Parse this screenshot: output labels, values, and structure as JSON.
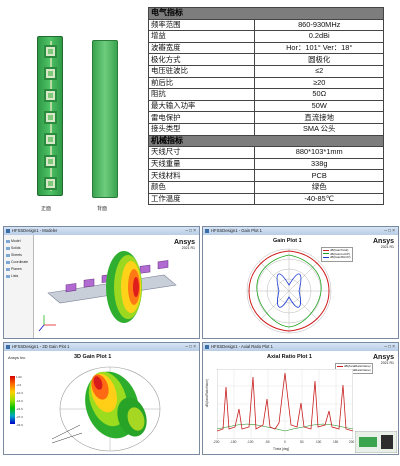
{
  "photos": {
    "front_caption": "正面",
    "back_caption": "背面"
  },
  "spec_table": {
    "electrical_header": "电气指标",
    "electrical": [
      {
        "label": "频率范围",
        "value": "860-930MHz"
      },
      {
        "label": "增益",
        "value": "0.2dBi"
      },
      {
        "label": "波瓣宽度",
        "value": "Hor：101°   Ver：18°"
      },
      {
        "label": "极化方式",
        "value": "圆极化"
      },
      {
        "label": "电压驻波比",
        "value": "≤2"
      },
      {
        "label": "前后比",
        "value": "≥20"
      },
      {
        "label": "阻抗",
        "value": "50Ω"
      },
      {
        "label": "最大输入功率",
        "value": "50W"
      },
      {
        "label": "雷电保护",
        "value": "直流接地"
      },
      {
        "label": "接头类型",
        "value": "SMA 公头"
      }
    ],
    "mechanical_header": "机械指标",
    "mechanical": [
      {
        "label": "天线尺寸",
        "value": "880*103*1mm"
      },
      {
        "label": "天线重量",
        "value": "338g"
      },
      {
        "label": "天线材料",
        "value": "PCB"
      },
      {
        "label": "颜色",
        "value": "绿色"
      },
      {
        "label": "工作温度",
        "value": "-40-85℃"
      }
    ]
  },
  "screens": {
    "modeler": {
      "title": "HFSSDesign1 - Modeler",
      "brand": "Ansys",
      "brand_sub": "2021 R1",
      "tree": [
        "Model",
        "Solids",
        "Sheets",
        "Coordinate",
        "Planes",
        "Lists"
      ]
    },
    "gain": {
      "title": "HFSSDesign1 - Gain Plot 1",
      "plot_title": "Gain Plot 1",
      "brand": "Ansys",
      "brand_sub": "2021 R1",
      "legend": [
        "dB(GainTotal)",
        "dB(GainLHCP)",
        "dB(GainRHCP)"
      ],
      "colors": {
        "total": "#d01c1c",
        "lhcp": "#1ca21c",
        "rhcp": "#1c3cd0"
      }
    },
    "gain3d": {
      "title": "HFSSDesign1 - 3D Gain Plot 1",
      "plot_title": "3D Gain Plot 1",
      "brand": "Ansys Inc",
      "scale_labels": [
        "1.02",
        "-4.6",
        "-10.3",
        "-16.0",
        "-21.6",
        "-27.3",
        "-33.0"
      ]
    },
    "axial": {
      "title": "HFSSDesign1 - Axial Ratio Plot 1",
      "plot_title": "Axial Ratio Plot 1",
      "brand": "Ansys",
      "brand_sub": "2021 R1",
      "xlabel": "Theta [deg]",
      "ylabel": "dB(AxialRatioValue)",
      "xticks": [
        "-200",
        "-150",
        "-100",
        "-50",
        "0",
        "50",
        "100",
        "150",
        "200"
      ],
      "legend": [
        "dB(AxialRatioValue)",
        "dB(AxialRatioValue)"
      ],
      "colors": {
        "a": "#c81e1e",
        "b": "#1e8c1e"
      }
    }
  }
}
